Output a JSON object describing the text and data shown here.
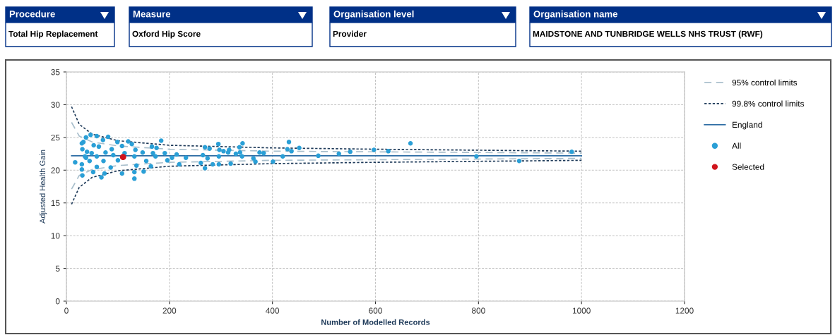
{
  "chart_data": {
    "type": "scatter",
    "xlabel": "Number of Modelled Records",
    "ylabel": "Adjusted Health Gain",
    "annotations": [
      "Procedure",
      "Total Hip Replacement",
      "Measure",
      "Oxford Hip Score",
      "Organisation level",
      "Provider",
      "Organisation name",
      "MAIDSTONE AND TUNBRIDGE WELLS NHS TRUST (RWF)"
    ],
    "xlim": [
      0,
      1200
    ],
    "xticks": [
      0,
      200,
      400,
      600,
      800,
      1000,
      1200
    ],
    "ylim": [
      0,
      35
    ],
    "yticks": [
      0,
      5,
      10,
      15,
      20,
      25,
      30,
      35
    ],
    "grid": true,
    "legend": "right",
    "series": [
      {
        "name": "95% control limits",
        "type": "line",
        "line_style": "dashed",
        "marker": "none",
        "color": "#a9bfcc",
        "x": [
          10,
          25,
          50,
          100,
          200,
          400,
          600,
          1000
        ],
        "values": [
          27.3,
          25.2,
          24.3,
          23.7,
          23.2,
          22.9,
          22.8,
          22.6
        ]
      },
      {
        "type": "line",
        "line_style": "dashed",
        "marker": "none",
        "color": "#a9bfcc",
        "x": [
          10,
          25,
          50,
          100,
          200,
          400,
          600,
          1000
        ],
        "values": [
          17.1,
          19.2,
          20.1,
          20.7,
          21.2,
          21.5,
          21.6,
          21.8
        ]
      },
      {
        "name": "99.8% control limits",
        "type": "line",
        "line_style": "dotted",
        "marker": "none",
        "color": "#1f3b5a",
        "x": [
          10,
          25,
          50,
          100,
          200,
          400,
          600,
          1000
        ],
        "values": [
          29.7,
          27.0,
          25.5,
          24.5,
          23.8,
          23.4,
          23.2,
          22.9
        ]
      },
      {
        "type": "line",
        "line_style": "dotted",
        "marker": "none",
        "color": "#1f3b5a",
        "x": [
          10,
          25,
          50,
          100,
          200,
          400,
          600,
          1000
        ],
        "values": [
          14.8,
          17.4,
          18.9,
          19.9,
          20.6,
          21.0,
          21.2,
          21.5
        ]
      },
      {
        "name": "England",
        "type": "line",
        "line_style": "solid",
        "marker": "none",
        "color": "#2e6da4",
        "x": [
          10,
          1000
        ],
        "values": [
          22.2,
          22.2
        ]
      },
      {
        "name": "All",
        "type": "scatter",
        "marker": "circle",
        "color": "#2a9fd6",
        "x": [
          47,
          59,
          81,
          38,
          71,
          99,
          120,
          184,
          127,
          33,
          53,
          108,
          166,
          31,
          63,
          88,
          134,
          175,
          40,
          76,
          148,
          191,
          214,
          36,
          59,
          91,
          132,
          173,
          205,
          232,
          45,
          72,
          100,
          155,
          196,
          30,
          59,
          86,
          136,
          164,
          219,
          30,
          52,
          74,
          68,
          108,
          132,
          150,
          132,
          38,
          49,
          113,
          168,
          31,
          17,
          30,
          269,
          295,
          342,
          336,
          297,
          305,
          316,
          314,
          329,
          337,
          341,
          375,
          383,
          363,
          367,
          296,
          274,
          265,
          261,
          284,
          296,
          319,
          269,
          278,
          401,
          420,
          432,
          429,
          437,
          452,
          489,
          529,
          551,
          597,
          625,
          668,
          796,
          879,
          981
        ],
        "values": [
          25.4,
          25.2,
          25.1,
          25.0,
          24.6,
          24.3,
          24.4,
          24.5,
          24.0,
          24.3,
          23.8,
          23.7,
          23.6,
          23.2,
          23.6,
          23.2,
          23.1,
          23.4,
          22.8,
          22.7,
          22.7,
          22.6,
          22.4,
          22.1,
          22.1,
          22.3,
          22.1,
          22.1,
          21.9,
          21.9,
          21.4,
          21.4,
          21.5,
          21.4,
          21.5,
          20.9,
          20.5,
          20.4,
          20.7,
          20.6,
          20.9,
          20.1,
          19.7,
          19.5,
          18.9,
          19.5,
          19.7,
          19.8,
          18.7,
          21.9,
          22.6,
          22.6,
          22.6,
          19.2,
          21.2,
          24.1,
          23.5,
          24.0,
          24.1,
          23.5,
          23.1,
          22.9,
          23.1,
          22.7,
          22.5,
          22.7,
          22.1,
          22.7,
          22.6,
          21.8,
          21.3,
          22.1,
          21.8,
          22.3,
          21.1,
          20.9,
          20.9,
          21.0,
          20.3,
          23.3,
          21.3,
          22.1,
          24.3,
          23.2,
          22.9,
          23.4,
          22.2,
          22.5,
          22.8,
          23.1,
          22.9,
          24.1,
          22.1,
          21.4,
          22.8
        ]
      },
      {
        "name": "Selected",
        "type": "scatter",
        "marker": "circle",
        "color": "#d0141c",
        "x": [
          110
        ],
        "values": [
          22.0
        ]
      }
    ]
  }
}
